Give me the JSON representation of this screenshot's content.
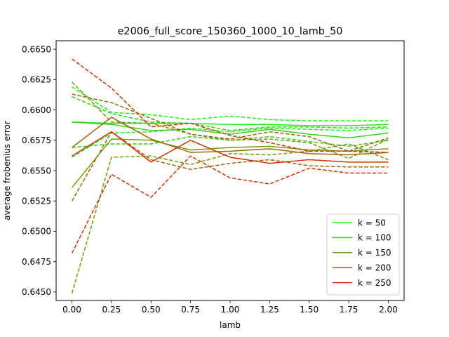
{
  "chart_data": {
    "type": "line",
    "title": "e2006_full_score_150360_1000_10_lamb_50",
    "xlabel": "lamb",
    "ylabel": "average frobenius error",
    "xlim": [
      -0.1,
      2.1
    ],
    "ylim": [
      0.6443,
      0.6657
    ],
    "x_ticks": [
      0.0,
      0.25,
      0.5,
      0.75,
      1.0,
      1.25,
      1.5,
      1.75,
      2.0
    ],
    "x_tick_labels": [
      "0.00",
      "0.25",
      "0.50",
      "0.75",
      "1.00",
      "1.25",
      "1.50",
      "1.75",
      "2.00"
    ],
    "y_ticks": [
      0.645,
      0.6475,
      0.65,
      0.6525,
      0.655,
      0.6575,
      0.66,
      0.6625,
      0.665
    ],
    "y_tick_labels": [
      "0.6450",
      "0.6475",
      "0.6500",
      "0.6525",
      "0.6550",
      "0.6575",
      "0.6600",
      "0.6625",
      "0.6650"
    ],
    "grid": false,
    "legend_position": "bottom-right",
    "x": [
      0.0,
      0.25,
      0.5,
      0.75,
      1.0,
      1.25,
      1.5,
      1.75,
      2.0
    ],
    "series": [
      {
        "name": "k = 50",
        "color": "#1ef01e",
        "style": "solid",
        "values": [
          0.659,
          0.6589,
          0.6589,
          0.6589,
          0.6588,
          0.6588,
          0.6587,
          0.6587,
          0.6588
        ]
      },
      {
        "color": "#1ef01e",
        "style": "dashed",
        "values": [
          0.6619,
          0.6598,
          0.6596,
          0.6592,
          0.6595,
          0.6592,
          0.6591,
          0.6591,
          0.6591
        ]
      },
      {
        "color": "#1ef01e",
        "style": "dashed",
        "values": [
          0.6561,
          0.6581,
          0.6582,
          0.6585,
          0.6582,
          0.6585,
          0.6584,
          0.6583,
          0.6585
        ]
      },
      {
        "name": "k = 100",
        "color": "#3dcc1a",
        "style": "solid",
        "values": [
          0.659,
          0.6588,
          0.6583,
          0.6584,
          0.658,
          0.6584,
          0.658,
          0.6577,
          0.6581
        ]
      },
      {
        "color": "#3dcc1a",
        "style": "dashed",
        "values": [
          0.6611,
          0.6597,
          0.659,
          0.6589,
          0.6583,
          0.6586,
          0.6586,
          0.6585,
          0.6586
        ]
      },
      {
        "color": "#3dcc1a",
        "style": "dashed",
        "values": [
          0.6569,
          0.6572,
          0.6572,
          0.6578,
          0.6575,
          0.6578,
          0.6574,
          0.657,
          0.6575
        ]
      },
      {
        "name": "k = 150",
        "color": "#6f9e0a",
        "style": "solid",
        "values": [
          0.6536,
          0.6576,
          0.6575,
          0.6567,
          0.6569,
          0.657,
          0.6567,
          0.6566,
          0.6568
        ]
      },
      {
        "color": "#6f9e0a",
        "style": "dashed",
        "values": [
          0.6623,
          0.659,
          0.6589,
          0.658,
          0.6575,
          0.6576,
          0.6573,
          0.656,
          0.6576
        ]
      },
      {
        "color": "#6f9e0a",
        "style": "dashed",
        "values": [
          0.6449,
          0.6561,
          0.6562,
          0.6555,
          0.6564,
          0.6563,
          0.6566,
          0.6572,
          0.6559
        ]
      },
      {
        "name": "k = 200",
        "color": "#a0640a",
        "style": "solid",
        "values": [
          0.6569,
          0.6594,
          0.6576,
          0.6565,
          0.6566,
          0.6568,
          0.6564,
          0.6563,
          0.6565
        ]
      },
      {
        "color": "#a0640a",
        "style": "dashed",
        "values": [
          0.6613,
          0.6606,
          0.6593,
          0.658,
          0.6576,
          0.6582,
          0.6578,
          0.6566,
          0.6577
        ]
      },
      {
        "color": "#a0640a",
        "style": "dashed",
        "values": [
          0.6525,
          0.6582,
          0.6559,
          0.6551,
          0.6556,
          0.6559,
          0.6554,
          0.6553,
          0.6553
        ]
      },
      {
        "name": "k = 250",
        "color": "#cc3300",
        "style": "solid",
        "values": [
          0.6562,
          0.6582,
          0.6557,
          0.6575,
          0.6561,
          0.6556,
          0.6559,
          0.6557,
          0.6557
        ]
      },
      {
        "color": "#cc3300",
        "style": "dashed",
        "values": [
          0.6642,
          0.6618,
          0.6586,
          0.6589,
          0.6579,
          0.6573,
          0.6566,
          0.6566,
          0.6565
        ]
      },
      {
        "color": "#cc3300",
        "style": "dashed",
        "values": [
          0.6482,
          0.6547,
          0.6528,
          0.6562,
          0.6544,
          0.6539,
          0.6552,
          0.6548,
          0.6548
        ]
      }
    ]
  }
}
